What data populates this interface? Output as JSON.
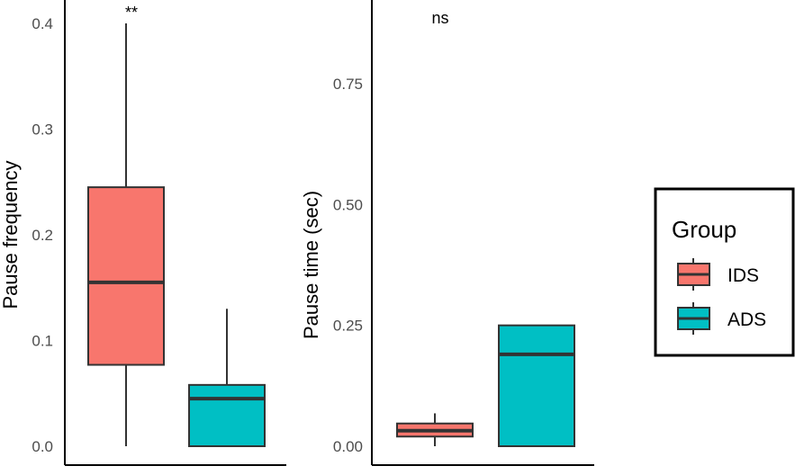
{
  "chart_data": [
    {
      "type": "boxplot",
      "ylabel": "Pause frequency",
      "xlabel": "",
      "ylim": [
        0,
        0.4
      ],
      "yticks": [
        0.0,
        0.1,
        0.2,
        0.3,
        0.4
      ],
      "ytick_labels": [
        "0.0",
        "0.1",
        "0.2",
        "0.3",
        "0.4"
      ],
      "significance": "**",
      "boxes": [
        {
          "group": "IDS",
          "min": 0.0,
          "q1": 0.077,
          "median": 0.155,
          "q3": 0.245,
          "max": 0.4
        },
        {
          "group": "ADS",
          "min": 0.0,
          "q1": 0.0,
          "median": 0.045,
          "q3": 0.058,
          "max": 0.13
        }
      ]
    },
    {
      "type": "boxplot",
      "ylabel": "Pause time (sec)",
      "xlabel": "",
      "ylim": [
        0,
        0.75
      ],
      "yticks": [
        0.0,
        0.25,
        0.5,
        0.75
      ],
      "ytick_labels": [
        "0.00",
        "0.25",
        "0.50",
        "0.75"
      ],
      "significance": "ns",
      "boxes": [
        {
          "group": "IDS",
          "min": 0.0,
          "q1": 0.02,
          "median": 0.032,
          "q3": 0.047,
          "max": 0.068
        },
        {
          "group": "ADS",
          "min": 0.0,
          "q1": 0.0,
          "median": 0.19,
          "q3": 0.25,
          "max": 0.25
        }
      ]
    }
  ],
  "legend": {
    "title": "Group",
    "items": [
      {
        "label": "IDS",
        "color": "#F8766D"
      },
      {
        "label": "ADS",
        "color": "#00BFC4"
      }
    ]
  }
}
